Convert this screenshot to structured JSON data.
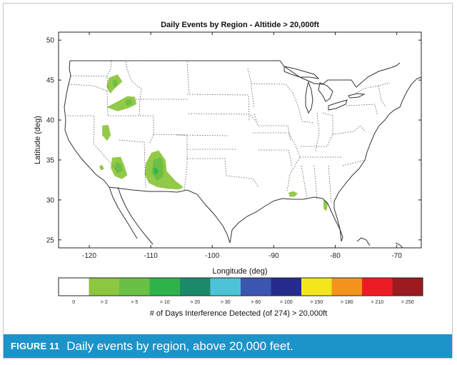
{
  "caption": {
    "label": "FIGURE 11",
    "text": "Daily events by region, above 20,000 feet."
  },
  "chart_data": {
    "type": "heatmap",
    "title": "Daily Events by Region - Altitide > 20,000ft",
    "xlabel": "Longitude (deg)",
    "ylabel": "Latitude (deg)",
    "xlim": [
      -125,
      -66
    ],
    "ylim": [
      24,
      51
    ],
    "xticks": [
      -120,
      -110,
      -100,
      -90,
      -80,
      -70
    ],
    "xtick_labels": [
      "-120",
      "-110",
      "-100",
      "-90",
      "-80",
      "-70"
    ],
    "yticks": [
      25,
      30,
      35,
      40,
      45,
      50
    ],
    "ytick_labels": [
      "25",
      "30",
      "35",
      "40",
      "45",
      "50"
    ],
    "grid": false,
    "colorbar": {
      "title": "# of Days Interference Detected (of 274) > 20,000ft",
      "labels": [
        "0",
        "> 2",
        "> 5",
        "> 10",
        "> 20",
        "> 30",
        "> 60",
        "> 100",
        "> 150",
        "> 180",
        "> 210",
        "> 250"
      ],
      "colors": [
        "#ffffff",
        "#8dc63f",
        "#6abf45",
        "#2eb34a",
        "#1b8a6b",
        "#4cc3d6",
        "#3a56b0",
        "#262c8c",
        "#f3e61c",
        "#f6921e",
        "#ed1c24",
        "#9b1b1f"
      ]
    },
    "regions": [
      {
        "name": "Idaho cluster",
        "category": "> 2",
        "points": [
          [
            -116.8,
            45.3
          ],
          [
            -115.4,
            45.7
          ],
          [
            -114.6,
            44.8
          ],
          [
            -115.8,
            44.0
          ],
          [
            -116.6,
            43.3
          ],
          [
            -117.2,
            44.2
          ]
        ]
      },
      {
        "name": "Idaho cluster core",
        "category": "> 5",
        "points": [
          [
            -116.2,
            44.9
          ],
          [
            -115.6,
            45.1
          ],
          [
            -115.4,
            44.4
          ],
          [
            -116.0,
            44.0
          ]
        ]
      },
      {
        "name": "Snake River cluster",
        "category": "> 2",
        "points": [
          [
            -117.2,
            41.6
          ],
          [
            -115.2,
            42.4
          ],
          [
            -113.8,
            43.0
          ],
          [
            -112.6,
            42.9
          ],
          [
            -112.3,
            42.0
          ],
          [
            -113.6,
            41.5
          ],
          [
            -115.4,
            41.1
          ]
        ]
      },
      {
        "name": "Snake River core",
        "category": "> 5",
        "points": [
          [
            -114.2,
            42.5
          ],
          [
            -113.2,
            42.6
          ],
          [
            -113.0,
            42.0
          ],
          [
            -114.0,
            41.8
          ]
        ]
      },
      {
        "name": "Nevada cluster",
        "category": "> 2",
        "points": [
          [
            -117.9,
            39.3
          ],
          [
            -116.9,
            39.4
          ],
          [
            -116.5,
            38.1
          ],
          [
            -117.1,
            37.4
          ],
          [
            -117.9,
            38.1
          ]
        ]
      },
      {
        "name": "Southern California cluster",
        "category": "> 2",
        "points": [
          [
            -116.3,
            35.3
          ],
          [
            -114.9,
            35.4
          ],
          [
            -114.3,
            34.3
          ],
          [
            -113.8,
            33.1
          ],
          [
            -114.7,
            32.6
          ],
          [
            -115.9,
            33.0
          ],
          [
            -116.5,
            34.0
          ]
        ]
      },
      {
        "name": "Southern California core",
        "category": "> 5",
        "points": [
          [
            -115.6,
            34.8
          ],
          [
            -114.8,
            34.5
          ],
          [
            -114.6,
            33.6
          ],
          [
            -115.4,
            33.3
          ],
          [
            -115.9,
            34.1
          ]
        ]
      },
      {
        "name": "Los Angeles spot",
        "category": "> 2",
        "points": [
          [
            -118.4,
            34.2
          ],
          [
            -117.9,
            34.4
          ],
          [
            -117.6,
            33.9
          ],
          [
            -118.1,
            33.7
          ]
        ]
      },
      {
        "name": "Arizona / New Mexico cluster",
        "category": "> 2",
        "points": [
          [
            -109.9,
            35.9
          ],
          [
            -108.7,
            36.2
          ],
          [
            -107.6,
            35.0
          ],
          [
            -107.4,
            33.6
          ],
          [
            -106.0,
            32.4
          ],
          [
            -104.7,
            31.6
          ],
          [
            -105.4,
            31.3
          ],
          [
            -107.3,
            31.4
          ],
          [
            -108.9,
            31.6
          ],
          [
            -110.3,
            32.1
          ],
          [
            -111.0,
            33.2
          ],
          [
            -110.8,
            34.6
          ]
        ]
      },
      {
        "name": "Arizona / New Mexico core",
        "category": "> 5",
        "points": [
          [
            -109.5,
            35.1
          ],
          [
            -108.3,
            35.3
          ],
          [
            -107.9,
            34.2
          ],
          [
            -108.0,
            32.9
          ],
          [
            -109.0,
            32.4
          ],
          [
            -109.9,
            33.4
          ]
        ]
      },
      {
        "name": "Arizona / New Mexico hotspot",
        "category": "> 10",
        "points": [
          [
            -109.6,
            33.9
          ],
          [
            -109.1,
            34.1
          ],
          [
            -108.7,
            33.5
          ],
          [
            -109.3,
            33.1
          ]
        ]
      },
      {
        "name": "Gulf coast spot",
        "category": "> 2",
        "points": [
          [
            -87.6,
            30.9
          ],
          [
            -86.8,
            31.1
          ],
          [
            -86.1,
            30.8
          ],
          [
            -86.6,
            30.4
          ],
          [
            -87.4,
            30.4
          ]
        ]
      },
      {
        "name": "North Florida spot",
        "category": "> 2",
        "points": [
          [
            -81.9,
            30.1
          ],
          [
            -81.2,
            29.7
          ],
          [
            -81.4,
            28.6
          ],
          [
            -81.9,
            28.9
          ]
        ]
      }
    ]
  }
}
